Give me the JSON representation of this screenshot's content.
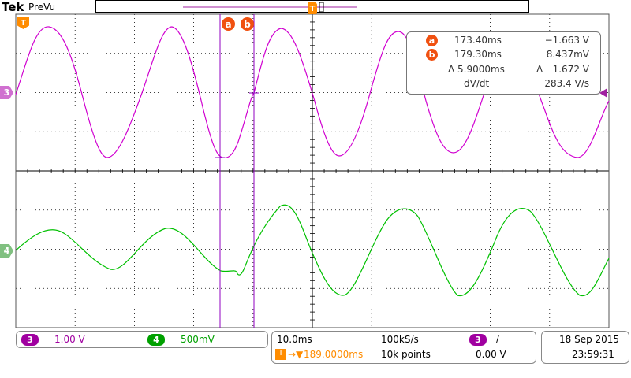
{
  "brand": "Tek",
  "mode": "PreVu",
  "overview": {
    "trigger_label": "T"
  },
  "channels": {
    "ch3": {
      "label": "3",
      "scale": "1.00 V",
      "color": "#d000d0"
    },
    "ch4": {
      "label": "4",
      "scale": "500mV",
      "color": "#00c000"
    }
  },
  "trigger_marker_label": "T",
  "cursors": {
    "a": {
      "label": "a"
    },
    "b": {
      "label": "b"
    }
  },
  "readout": {
    "a_time": "173.40ms",
    "a_value": "−1.663 V",
    "b_time": "179.30ms",
    "b_value": "8.437mV",
    "delta_time": "5.9000ms",
    "delta_value": "1.672 V",
    "delta_symbol": "Δ",
    "dvdt_label": "dV/dt",
    "dvdt_value": "283.4 V/s"
  },
  "horizontal": {
    "scale": "10.0ms",
    "delay": "189.0000ms",
    "sample_rate": "100kS/s",
    "record_length": "10k points"
  },
  "trigger": {
    "source": "3",
    "slope_symbol": "/",
    "level": "0.00 V"
  },
  "datetime": {
    "date": "18 Sep  2015",
    "time": "23:59:31"
  },
  "colors": {
    "cursor": "#9000c0",
    "cursor_tag": "#f05010",
    "trigger": "#ff8c00",
    "grid": "#000000"
  }
}
